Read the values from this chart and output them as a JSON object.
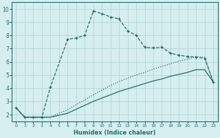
{
  "xlabel": "Humidex (Indice chaleur)",
  "background_color": "#d6eef0",
  "grid_color": "#b8d8da",
  "line_color": "#1a6e6a",
  "xlim": [
    -0.5,
    23.5
  ],
  "ylim": [
    1.5,
    10.5
  ],
  "xticks": [
    0,
    1,
    2,
    3,
    4,
    5,
    6,
    7,
    8,
    9,
    10,
    11,
    12,
    13,
    14,
    15,
    16,
    17,
    18,
    19,
    20,
    21,
    22,
    23
  ],
  "yticks": [
    2,
    3,
    4,
    5,
    6,
    7,
    8,
    9,
    10
  ],
  "curve1_x": [
    0,
    1,
    2,
    3,
    4,
    6,
    7,
    8,
    9,
    10,
    11,
    12,
    13,
    14,
    15,
    16,
    17,
    18,
    19,
    20,
    21,
    22,
    23
  ],
  "curve1_y": [
    2.5,
    1.8,
    1.8,
    1.8,
    4.1,
    7.7,
    7.8,
    8.0,
    9.85,
    9.65,
    9.4,
    9.25,
    8.35,
    8.0,
    7.1,
    7.05,
    7.1,
    6.65,
    6.5,
    6.4,
    6.35,
    6.25,
    4.45
  ],
  "curve2_x": [
    0,
    1,
    2,
    3,
    4,
    5,
    6,
    7,
    8,
    9,
    10,
    11,
    12,
    13,
    14,
    15,
    16,
    17,
    18,
    19,
    20,
    21,
    22,
    23
  ],
  "curve2_y": [
    2.5,
    1.8,
    1.8,
    1.8,
    1.8,
    2.1,
    2.35,
    2.75,
    3.1,
    3.5,
    3.85,
    4.2,
    4.5,
    4.75,
    5.0,
    5.2,
    5.45,
    5.65,
    5.85,
    6.05,
    6.2,
    6.4,
    6.35,
    4.45
  ],
  "curve3_x": [
    0,
    1,
    2,
    3,
    4,
    5,
    6,
    7,
    8,
    9,
    10,
    11,
    12,
    13,
    14,
    15,
    16,
    17,
    18,
    19,
    20,
    21,
    22,
    23
  ],
  "curve3_y": [
    2.5,
    1.8,
    1.8,
    1.8,
    1.8,
    1.95,
    2.1,
    2.4,
    2.7,
    3.0,
    3.25,
    3.5,
    3.75,
    3.95,
    4.15,
    4.35,
    4.55,
    4.7,
    4.9,
    5.05,
    5.2,
    5.4,
    5.4,
    4.45
  ]
}
